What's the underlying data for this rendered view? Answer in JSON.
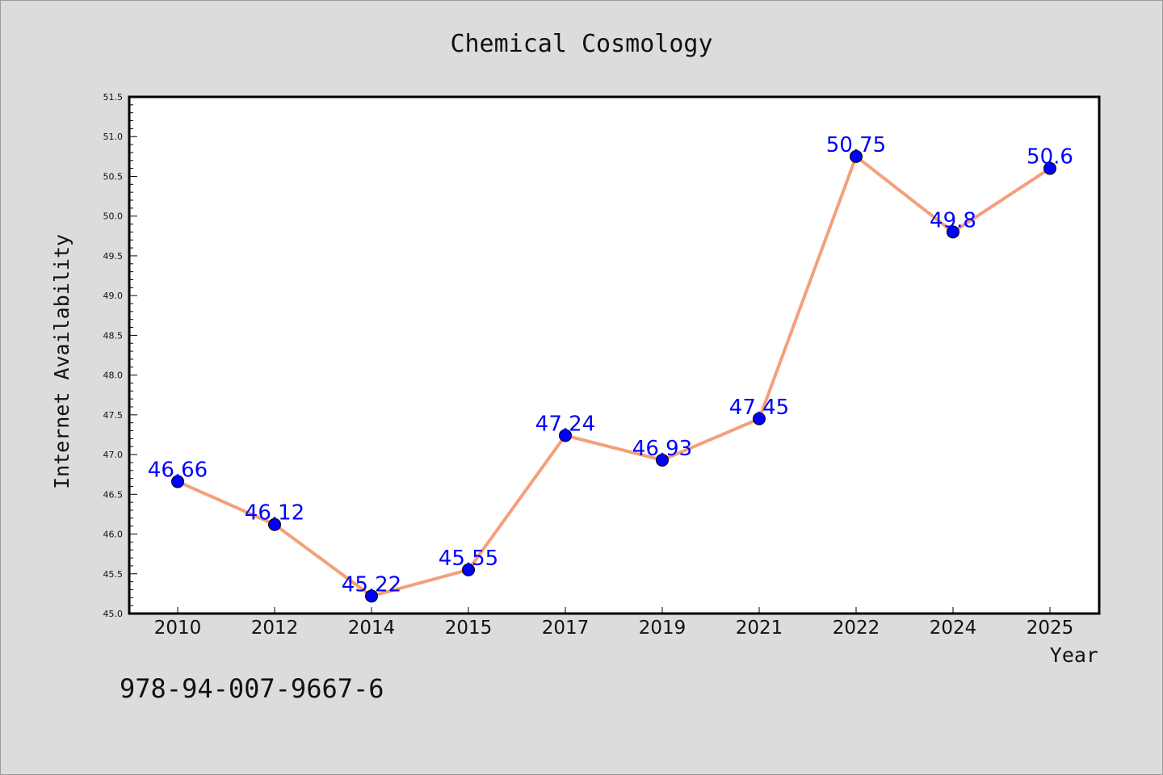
{
  "chart_data": {
    "type": "line",
    "title": "Chemical Cosmology",
    "xlabel": "Year",
    "ylabel": "Internet Availability",
    "categories": [
      "2010",
      "2012",
      "2014",
      "2015",
      "2017",
      "2019",
      "2021",
      "2022",
      "2024",
      "2025"
    ],
    "values": [
      46.66,
      46.12,
      45.22,
      45.55,
      47.24,
      46.93,
      47.45,
      50.75,
      49.8,
      50.6
    ],
    "data_labels": [
      "46.66",
      "46.12",
      "45.22",
      "45.55",
      "47.24",
      "46.93",
      "47.45",
      "50.75",
      "49.8",
      "50.6"
    ],
    "ylim": [
      45.0,
      51.5
    ],
    "yticks": [
      "45.0",
      "45.5",
      "46.0",
      "46.5",
      "47.0",
      "47.5",
      "48.0",
      "48.5",
      "49.0",
      "49.5",
      "50.0",
      "50.5",
      "51.0",
      "51.5"
    ],
    "grid": false,
    "legend": "none",
    "colors": {
      "line": "#f4a07a",
      "marker": "#0000ff",
      "data_label": "#0000ff",
      "background": "#dcdcdc",
      "plot_background": "#ffffff"
    }
  },
  "footer": {
    "isbn": "978-94-007-9667-6"
  }
}
